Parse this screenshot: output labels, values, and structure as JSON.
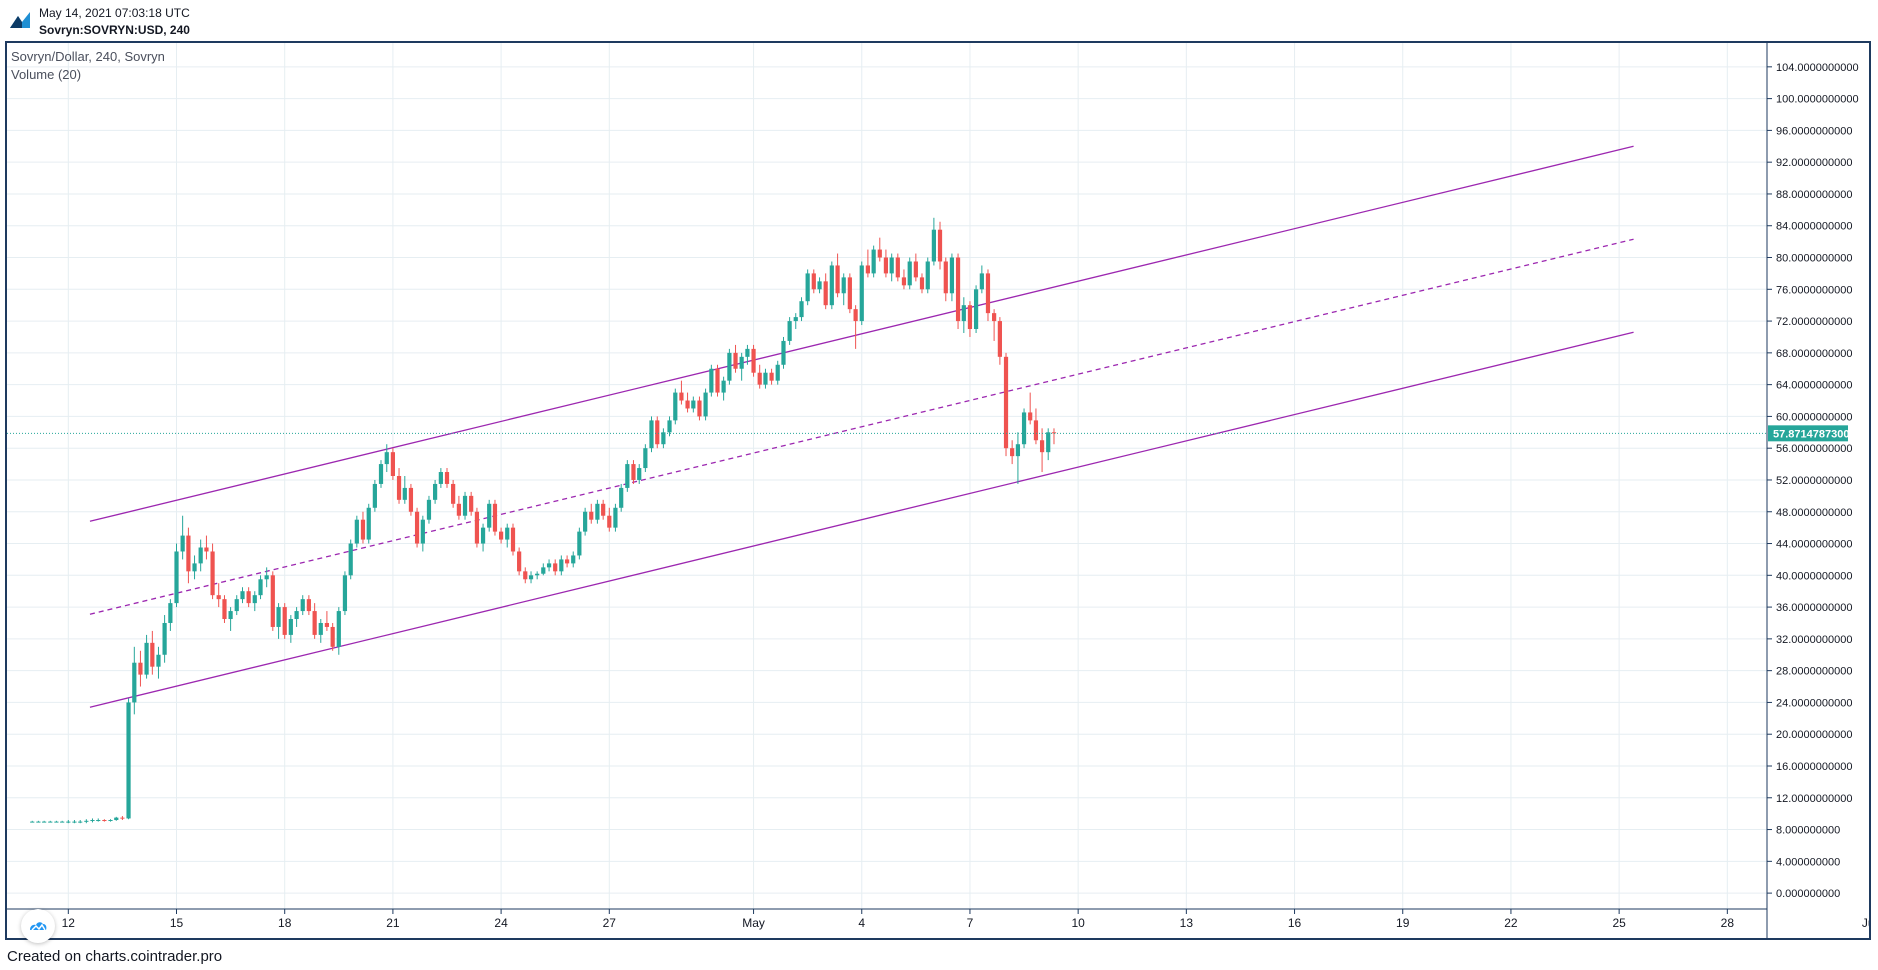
{
  "header": {
    "timestamp": "May 14, 2021 07:03:18 UTC",
    "symbol_line": "Sovryn:SOVRYN:USD, 240"
  },
  "legend": {
    "title": "Sovryn/Dollar, 240, Sovryn",
    "volume": "Volume (20)"
  },
  "footer": {
    "text": "Created on charts.cointrader.pro"
  },
  "colors": {
    "up": "#26a69a",
    "down": "#ef5350",
    "channel": "#9c27b0",
    "last_price_bg": "#26a69a",
    "frame": "#1e3a5f",
    "grid": "#e6eef2"
  },
  "chart_data": {
    "type": "candlestick",
    "title": "Sovryn/Dollar, 240, Sovryn",
    "ylim": [
      -2,
      107
    ],
    "x_range_days": [
      10.3,
      59.1
    ],
    "x_tick_labels": [
      {
        "day": 12,
        "label": "12"
      },
      {
        "day": 15,
        "label": "15"
      },
      {
        "day": 18,
        "label": "18"
      },
      {
        "day": 21,
        "label": "21"
      },
      {
        "day": 24,
        "label": "24"
      },
      {
        "day": 27,
        "label": "27"
      },
      {
        "day": 31,
        "label": "May"
      },
      {
        "day": 34,
        "label": "4"
      },
      {
        "day": 37,
        "label": "7"
      },
      {
        "day": 40,
        "label": "10"
      },
      {
        "day": 43,
        "label": "13"
      },
      {
        "day": 46,
        "label": "16"
      },
      {
        "day": 49,
        "label": "19"
      },
      {
        "day": 52,
        "label": "22"
      },
      {
        "day": 55,
        "label": "25"
      },
      {
        "day": 58,
        "label": "28"
      },
      {
        "day": 62,
        "label": "Jun"
      }
    ],
    "y_tick_labels": [
      "0.000000000",
      "4.000000000",
      "8.000000000",
      "12.0000000000",
      "16.0000000000",
      "20.0000000000",
      "24.0000000000",
      "28.0000000000",
      "32.0000000000",
      "36.0000000000",
      "40.0000000000",
      "44.0000000000",
      "48.0000000000",
      "52.0000000000",
      "56.0000000000",
      "60.0000000000",
      "64.0000000000",
      "68.0000000000",
      "72.0000000000",
      "76.0000000000",
      "80.0000000000",
      "84.0000000000",
      "88.0000000000",
      "92.0000000000",
      "96.0000000000",
      "100.0000000000",
      "104.0000000000"
    ],
    "y_tick_values": [
      0,
      4,
      8,
      12,
      16,
      20,
      24,
      28,
      32,
      36,
      40,
      44,
      48,
      52,
      56,
      60,
      64,
      68,
      72,
      76,
      80,
      84,
      88,
      92,
      96,
      100,
      104
    ],
    "last_price": 57.87,
    "last_price_label": "57.8714787300",
    "channel": {
      "upper": {
        "x1": 12.6,
        "y1": 46.8,
        "x2": 55.4,
        "y2": 94.0
      },
      "middle": {
        "x1": 12.6,
        "y1": 35.1,
        "x2": 55.4,
        "y2": 82.3
      },
      "lower": {
        "x1": 12.6,
        "y1": 23.4,
        "x2": 55.4,
        "y2": 70.6
      }
    },
    "candles": [
      [
        11.0,
        9.0,
        9.1,
        8.9,
        9.0
      ],
      [
        11.17,
        9.0,
        9.1,
        8.9,
        9.0
      ],
      [
        11.33,
        9.0,
        9.1,
        8.9,
        9.0
      ],
      [
        11.5,
        9.0,
        9.1,
        8.9,
        9.0
      ],
      [
        11.67,
        9.0,
        9.1,
        8.9,
        9.0
      ],
      [
        11.83,
        9.0,
        9.1,
        8.9,
        9.0
      ],
      [
        12.0,
        9.0,
        9.2,
        8.8,
        9.0
      ],
      [
        12.17,
        9.0,
        9.2,
        8.8,
        9.0
      ],
      [
        12.33,
        9.0,
        9.2,
        8.8,
        9.0
      ],
      [
        12.5,
        9.0,
        9.3,
        8.8,
        9.1
      ],
      [
        12.67,
        9.1,
        9.4,
        8.9,
        9.2
      ],
      [
        12.83,
        9.2,
        9.4,
        9.0,
        9.2
      ],
      [
        13.0,
        9.2,
        9.3,
        9.0,
        9.1
      ],
      [
        13.17,
        9.1,
        9.3,
        9.0,
        9.2
      ],
      [
        13.33,
        9.2,
        9.6,
        9.1,
        9.5
      ],
      [
        13.5,
        9.5,
        9.7,
        9.2,
        9.4
      ],
      [
        13.67,
        9.4,
        24.5,
        9.3,
        24.0
      ],
      [
        13.83,
        24.0,
        31.0,
        22.5,
        29.0
      ],
      [
        14.0,
        29.0,
        30.5,
        26.0,
        27.5
      ],
      [
        14.17,
        27.5,
        32.5,
        27.0,
        31.5
      ],
      [
        14.33,
        31.5,
        33.0,
        27.5,
        28.5
      ],
      [
        14.5,
        28.5,
        31.0,
        27.0,
        30.0
      ],
      [
        14.67,
        30.0,
        35.0,
        29.0,
        34.0
      ],
      [
        14.83,
        34.0,
        37.0,
        33.0,
        36.5
      ],
      [
        15.0,
        36.5,
        44.0,
        36.0,
        43.0
      ],
      [
        15.17,
        43.0,
        47.5,
        42.0,
        45.0
      ],
      [
        15.33,
        45.0,
        46.0,
        39.0,
        40.5
      ],
      [
        15.5,
        40.5,
        42.5,
        39.5,
        41.5
      ],
      [
        15.67,
        41.5,
        44.5,
        40.5,
        43.5
      ],
      [
        15.83,
        43.5,
        45.0,
        42.0,
        43.0
      ],
      [
        16.0,
        43.0,
        44.0,
        37.0,
        37.5
      ],
      [
        16.17,
        37.5,
        39.0,
        36.0,
        37.0
      ],
      [
        16.33,
        37.0,
        37.5,
        34.0,
        34.5
      ],
      [
        16.5,
        34.5,
        36.0,
        33.0,
        35.5
      ],
      [
        16.67,
        35.5,
        37.5,
        35.0,
        37.0
      ],
      [
        16.83,
        37.0,
        38.5,
        36.5,
        38.0
      ],
      [
        17.0,
        38.0,
        38.5,
        36.0,
        36.5
      ],
      [
        17.17,
        36.5,
        38.0,
        35.5,
        37.5
      ],
      [
        17.33,
        37.5,
        40.0,
        37.0,
        39.5
      ],
      [
        17.5,
        39.5,
        41.0,
        38.5,
        40.0
      ],
      [
        17.67,
        40.0,
        40.5,
        33.0,
        33.5
      ],
      [
        17.83,
        33.5,
        36.5,
        32.0,
        36.0
      ],
      [
        18.0,
        36.0,
        36.5,
        32.0,
        32.5
      ],
      [
        18.17,
        32.5,
        35.0,
        31.5,
        34.5
      ],
      [
        18.33,
        34.5,
        36.0,
        33.5,
        35.5
      ],
      [
        18.5,
        35.5,
        37.5,
        35.0,
        37.0
      ],
      [
        18.67,
        37.0,
        37.5,
        35.0,
        35.5
      ],
      [
        18.83,
        35.5,
        36.5,
        32.0,
        32.5
      ],
      [
        19.0,
        32.5,
        34.5,
        31.5,
        34.0
      ],
      [
        19.17,
        34.0,
        35.5,
        33.0,
        33.5
      ],
      [
        19.33,
        33.5,
        34.0,
        30.5,
        31.0
      ],
      [
        19.5,
        31.0,
        36.0,
        30.0,
        35.5
      ],
      [
        19.67,
        35.5,
        40.5,
        35.0,
        40.0
      ],
      [
        19.83,
        40.0,
        44.5,
        39.5,
        44.0
      ],
      [
        20.0,
        44.0,
        47.5,
        43.5,
        47.0
      ],
      [
        20.17,
        47.0,
        48.0,
        44.0,
        44.5
      ],
      [
        20.33,
        44.5,
        49.0,
        44.0,
        48.5
      ],
      [
        20.5,
        48.5,
        52.0,
        48.0,
        51.5
      ],
      [
        20.67,
        51.5,
        54.5,
        51.0,
        54.0
      ],
      [
        20.83,
        54.0,
        56.5,
        53.0,
        55.5
      ],
      [
        21.0,
        55.5,
        56.0,
        52.0,
        52.5
      ],
      [
        21.17,
        52.5,
        53.5,
        49.0,
        49.5
      ],
      [
        21.33,
        49.5,
        52.5,
        49.0,
        51.0
      ],
      [
        21.5,
        51.0,
        51.5,
        47.5,
        48.0
      ],
      [
        21.67,
        48.0,
        48.5,
        43.5,
        44.0
      ],
      [
        21.83,
        44.0,
        47.5,
        43.0,
        47.0
      ],
      [
        22.0,
        47.0,
        50.0,
        46.5,
        49.5
      ],
      [
        22.17,
        49.5,
        52.0,
        49.0,
        51.5
      ],
      [
        22.33,
        51.5,
        53.5,
        51.0,
        53.0
      ],
      [
        22.5,
        53.0,
        53.5,
        51.0,
        51.5
      ],
      [
        22.67,
        51.5,
        52.0,
        48.5,
        49.0
      ],
      [
        22.83,
        49.0,
        50.0,
        47.0,
        47.5
      ],
      [
        23.0,
        47.5,
        50.5,
        47.0,
        50.0
      ],
      [
        23.17,
        50.0,
        50.5,
        47.5,
        48.0
      ],
      [
        23.33,
        48.0,
        48.5,
        43.5,
        44.0
      ],
      [
        23.5,
        44.0,
        46.5,
        43.0,
        46.0
      ],
      [
        23.67,
        46.0,
        49.5,
        45.5,
        49.0
      ],
      [
        23.83,
        49.0,
        49.5,
        45.0,
        45.5
      ],
      [
        24.0,
        45.5,
        46.0,
        44.0,
        44.5
      ],
      [
        24.17,
        44.5,
        46.5,
        43.5,
        46.0
      ],
      [
        24.33,
        46.0,
        46.5,
        42.5,
        43.0
      ],
      [
        24.5,
        43.0,
        43.5,
        40.0,
        40.5
      ],
      [
        24.67,
        40.5,
        41.0,
        39.0,
        39.5
      ],
      [
        24.83,
        39.5,
        40.5,
        39.0,
        40.0
      ],
      [
        25.0,
        40.0,
        40.5,
        39.5,
        40.2
      ],
      [
        25.17,
        40.2,
        41.5,
        40.0,
        41.0
      ],
      [
        25.33,
        41.0,
        42.0,
        40.5,
        41.5
      ],
      [
        25.5,
        41.5,
        42.0,
        40.0,
        40.5
      ],
      [
        25.67,
        40.5,
        42.5,
        40.0,
        42.0
      ],
      [
        25.83,
        42.0,
        42.5,
        41.0,
        41.5
      ],
      [
        26.0,
        41.5,
        43.0,
        41.0,
        42.5
      ],
      [
        26.17,
        42.5,
        46.0,
        42.0,
        45.5
      ],
      [
        26.33,
        45.5,
        48.5,
        45.0,
        48.0
      ],
      [
        26.5,
        48.0,
        49.0,
        46.5,
        47.0
      ],
      [
        26.67,
        47.0,
        49.5,
        46.5,
        49.0
      ],
      [
        26.83,
        49.0,
        49.5,
        47.0,
        47.5
      ],
      [
        27.0,
        47.5,
        48.5,
        45.5,
        46.0
      ],
      [
        27.17,
        46.0,
        49.0,
        45.5,
        48.5
      ],
      [
        27.33,
        48.5,
        51.5,
        48.0,
        51.0
      ],
      [
        27.5,
        51.0,
        54.5,
        50.5,
        54.0
      ],
      [
        27.67,
        54.0,
        54.5,
        51.5,
        52.0
      ],
      [
        27.83,
        52.0,
        54.0,
        51.5,
        53.5
      ],
      [
        28.0,
        53.5,
        56.5,
        53.0,
        56.0
      ],
      [
        28.17,
        56.0,
        60.0,
        55.5,
        59.5
      ],
      [
        28.33,
        59.5,
        60.0,
        56.0,
        56.5
      ],
      [
        28.5,
        56.5,
        58.5,
        56.0,
        58.0
      ],
      [
        28.67,
        58.0,
        60.0,
        57.5,
        59.5
      ],
      [
        28.83,
        59.5,
        63.5,
        59.0,
        63.0
      ],
      [
        29.0,
        63.0,
        64.5,
        61.5,
        62.0
      ],
      [
        29.17,
        62.0,
        63.0,
        60.5,
        61.0
      ],
      [
        29.33,
        61.0,
        62.5,
        60.5,
        62.0
      ],
      [
        29.5,
        62.0,
        62.5,
        59.5,
        60.0
      ],
      [
        29.67,
        60.0,
        63.5,
        59.5,
        63.0
      ],
      [
        29.83,
        63.0,
        66.5,
        62.5,
        66.0
      ],
      [
        30.0,
        66.0,
        66.5,
        62.5,
        63.0
      ],
      [
        30.17,
        63.0,
        65.0,
        62.0,
        64.5
      ],
      [
        30.33,
        64.5,
        68.5,
        64.0,
        68.0
      ],
      [
        30.5,
        68.0,
        69.0,
        65.5,
        66.0
      ],
      [
        30.67,
        66.0,
        68.0,
        64.5,
        67.5
      ],
      [
        30.83,
        67.5,
        69.0,
        66.5,
        68.5
      ],
      [
        31.0,
        68.5,
        69.0,
        65.0,
        65.5
      ],
      [
        31.17,
        65.5,
        66.5,
        63.5,
        64.0
      ],
      [
        31.33,
        64.0,
        66.0,
        63.5,
        65.5
      ],
      [
        31.5,
        65.5,
        66.0,
        64.0,
        64.5
      ],
      [
        31.67,
        64.5,
        67.0,
        64.0,
        66.5
      ],
      [
        31.83,
        66.5,
        70.0,
        66.0,
        69.5
      ],
      [
        32.0,
        69.5,
        72.5,
        69.0,
        72.0
      ],
      [
        32.17,
        72.0,
        73.0,
        71.0,
        72.5
      ],
      [
        32.33,
        72.5,
        75.0,
        72.0,
        74.5
      ],
      [
        32.5,
        74.5,
        78.5,
        74.0,
        78.0
      ],
      [
        32.67,
        78.0,
        78.5,
        75.5,
        76.0
      ],
      [
        32.83,
        76.0,
        77.5,
        75.5,
        77.0
      ],
      [
        33.0,
        77.0,
        78.0,
        73.5,
        74.0
      ],
      [
        33.17,
        74.0,
        79.5,
        73.5,
        79.0
      ],
      [
        33.33,
        79.0,
        80.5,
        75.0,
        75.5
      ],
      [
        33.5,
        75.5,
        78.0,
        74.0,
        77.5
      ],
      [
        33.67,
        77.5,
        78.0,
        73.0,
        73.5
      ],
      [
        33.83,
        73.5,
        74.0,
        68.5,
        72.0
      ],
      [
        34.0,
        72.0,
        79.5,
        71.5,
        79.0
      ],
      [
        34.17,
        79.0,
        81.0,
        77.5,
        78.0
      ],
      [
        34.33,
        78.0,
        81.5,
        77.5,
        81.0
      ],
      [
        34.5,
        81.0,
        82.5,
        79.5,
        80.0
      ],
      [
        34.67,
        80.0,
        81.0,
        77.5,
        78.0
      ],
      [
        34.83,
        78.0,
        80.5,
        77.0,
        80.0
      ],
      [
        35.0,
        80.0,
        80.5,
        77.0,
        77.5
      ],
      [
        35.17,
        77.5,
        78.5,
        76.0,
        76.5
      ],
      [
        35.33,
        76.5,
        80.0,
        76.0,
        79.5
      ],
      [
        35.5,
        79.5,
        80.5,
        77.0,
        77.5
      ],
      [
        35.67,
        77.5,
        78.0,
        75.5,
        76.0
      ],
      [
        35.83,
        76.0,
        80.0,
        75.5,
        79.5
      ],
      [
        36.0,
        79.5,
        85.0,
        79.0,
        83.5
      ],
      [
        36.17,
        83.5,
        84.5,
        78.5,
        79.5
      ],
      [
        36.33,
        79.5,
        80.0,
        74.5,
        75.5
      ],
      [
        36.5,
        75.5,
        80.5,
        74.5,
        80.0
      ],
      [
        36.67,
        80.0,
        80.5,
        71.0,
        72.0
      ],
      [
        36.83,
        72.0,
        75.0,
        70.5,
        74.0
      ],
      [
        37.0,
        74.0,
        74.5,
        70.0,
        71.0
      ],
      [
        37.17,
        71.0,
        76.5,
        70.5,
        76.0
      ],
      [
        37.33,
        76.0,
        79.0,
        75.5,
        78.0
      ],
      [
        37.5,
        78.0,
        78.5,
        72.0,
        73.0
      ],
      [
        37.67,
        73.0,
        73.5,
        69.5,
        72.0
      ],
      [
        37.83,
        72.0,
        72.5,
        66.5,
        67.5
      ],
      [
        38.0,
        67.5,
        68.0,
        55.0,
        56.0
      ],
      [
        38.17,
        56.0,
        57.0,
        54.0,
        55.0
      ],
      [
        38.33,
        55.0,
        58.0,
        51.5,
        56.5
      ],
      [
        38.5,
        56.5,
        61.0,
        56.0,
        60.5
      ],
      [
        38.67,
        60.5,
        63.0,
        59.0,
        59.5
      ],
      [
        38.83,
        59.5,
        61.0,
        56.5,
        57.0
      ],
      [
        39.0,
        57.0,
        58.5,
        53.0,
        55.5
      ],
      [
        39.17,
        55.5,
        58.5,
        54.5,
        58.0
      ],
      [
        39.33,
        58.0,
        58.5,
        56.5,
        57.87
      ]
    ]
  }
}
